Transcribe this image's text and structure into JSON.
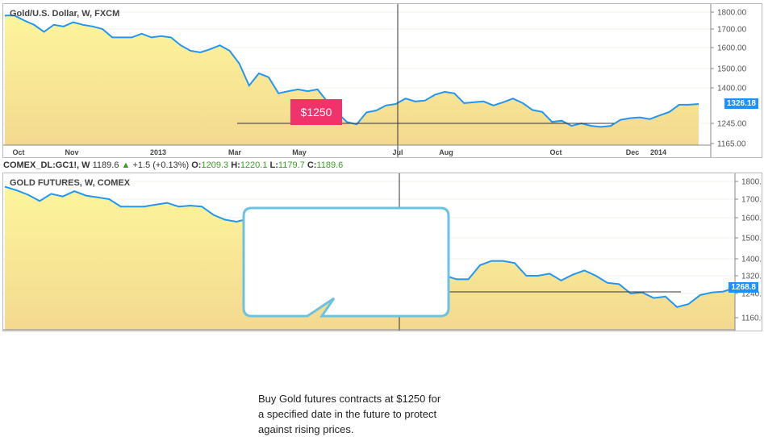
{
  "chart_data": [
    {
      "type": "area",
      "title": "Gold/U.S. Dollar, W, FXCM",
      "last_price": "1326.18",
      "y_ticks": [
        "1800.00",
        "1700.00",
        "1600.00",
        "1500.00",
        "1400.00",
        "1245.00",
        "1165.00"
      ],
      "x_ticks": [
        "Oct",
        "Nov",
        "2013",
        "Mar",
        "May",
        "Jul",
        "Aug",
        "Oct",
        "Dec",
        "2014"
      ],
      "values": [
        1780,
        1780,
        1750,
        1725,
        1685,
        1725,
        1715,
        1740,
        1725,
        1715,
        1700,
        1655,
        1655,
        1655,
        1675,
        1655,
        1662,
        1655,
        1612,
        1585,
        1577,
        1592,
        1612,
        1585,
        1523,
        1412,
        1475,
        1455,
        1375,
        1385,
        1393,
        1385,
        1393,
        1337,
        1291,
        1251,
        1241,
        1291,
        1299,
        1320,
        1326,
        1351,
        1338,
        1342,
        1368,
        1382,
        1375,
        1330,
        1334,
        1338,
        1320,
        1334,
        1351,
        1330,
        1301,
        1293,
        1251,
        1256,
        1235,
        1245,
        1235,
        1231,
        1235,
        1260,
        1267,
        1270,
        1263,
        1278,
        1293,
        1323,
        1323,
        1326
      ],
      "annotation": "$1250",
      "reference_level": 1250
    },
    {
      "type": "area",
      "title": "GOLD FUTURES, W, COMEX",
      "last_price": "1268.8",
      "y_ticks": [
        "1800.0",
        "1700.0",
        "1600.0",
        "1500.0",
        "1400.0",
        "1320.0",
        "1240.0",
        "1160.0"
      ],
      "x_ticks": [
        "Nov",
        "2013",
        "Mar",
        "May",
        "Jul",
        "Aug",
        "Oct",
        "Dec",
        "2014"
      ],
      "values": [
        1770,
        1750,
        1725,
        1690,
        1730,
        1715,
        1745,
        1720,
        1710,
        1700,
        1660,
        1660,
        1660,
        1670,
        1680,
        1660,
        1665,
        1660,
        1615,
        1590,
        1580,
        1595,
        1610,
        1585,
        1525,
        1415,
        1470,
        1450,
        1380,
        1390,
        1395,
        1390,
        1395,
        1300,
        1235,
        1220,
        1280,
        1290,
        1320,
        1305,
        1305,
        1370,
        1390,
        1390,
        1380,
        1320,
        1320,
        1330,
        1300,
        1325,
        1345,
        1320,
        1290,
        1285,
        1240,
        1245,
        1225,
        1230,
        1195,
        1205,
        1235,
        1245,
        1250,
        1268.8
      ],
      "annotation": "Buy Gold futures contracts at $1250 for a specified date in the future to protect against rising prices.",
      "reference_level": 1250
    }
  ],
  "legend": {
    "symbol": "COMEX_DL:GC1!, W",
    "last": "1189.6",
    "change": "+1.5 (+0.13%)",
    "o_label": "O:",
    "o": "1209.3",
    "h_label": "H:",
    "h": "1220.1",
    "l_label": "L:",
    "l": "1179.7",
    "c_label": "C:",
    "c": "1189.6"
  },
  "colors": {
    "line": "#2196f3",
    "fill_top": "#fdf59c",
    "fill_bottom": "#f3d98f",
    "label": "#f0336b",
    "price": "#1e90ff"
  }
}
